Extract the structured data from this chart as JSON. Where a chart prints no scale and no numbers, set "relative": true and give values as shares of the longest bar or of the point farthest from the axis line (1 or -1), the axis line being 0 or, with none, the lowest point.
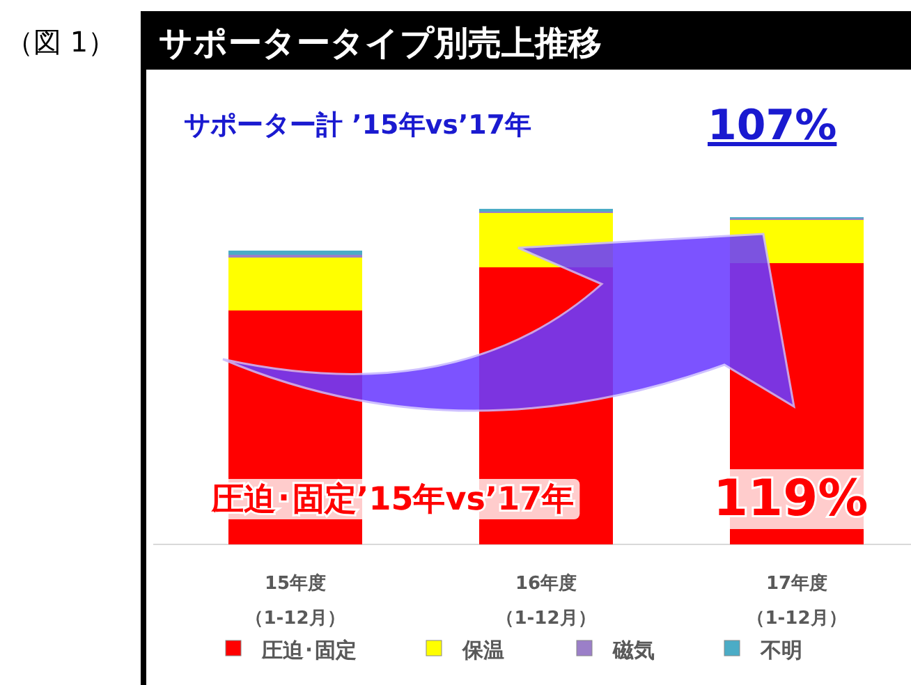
{
  "chart_data": {
    "type": "bar",
    "stacked": true,
    "relative": true,
    "title": "サポータータイプ別売上推移",
    "categories": [
      "15年度（1-12月）",
      "16年度（1-12月）",
      "17年度（1-12月）"
    ],
    "series": [
      {
        "name": "圧迫･固定",
        "color": "#ff0000",
        "values": [
          0.697,
          0.826,
          0.838
        ]
      },
      {
        "name": "保温",
        "color": "#ffff00",
        "values": [
          0.158,
          0.162,
          0.129
        ]
      },
      {
        "name": "磁気",
        "color": "#9b7fc8",
        "values": [
          0.008,
          0.004,
          0.004
        ]
      },
      {
        "name": "不明",
        "color": "#4bacc6",
        "values": [
          0.012,
          0.008,
          0.004
        ]
      }
    ],
    "legend": "bottom",
    "annotations": [
      "（図 1）",
      "サポーター計 ’15年vs’17年",
      "107%",
      "圧迫･固定’15年vs’17年",
      "119%"
    ]
  }
}
